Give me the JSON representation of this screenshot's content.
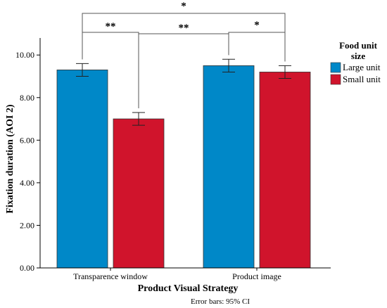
{
  "chart_data": {
    "type": "bar",
    "xlabel": "Product Visual Strategy",
    "ylabel": "Fixation duration (AOI 2)",
    "categories": [
      "Transparence window",
      "Product image"
    ],
    "series": [
      {
        "name": "Large unit",
        "color": "#0088c8",
        "values": [
          9.3,
          9.5
        ],
        "ci": [
          [
            9.0,
            9.6
          ],
          [
            9.2,
            9.8
          ]
        ]
      },
      {
        "name": "Small unit",
        "color": "#d0142c",
        "values": [
          7.0,
          9.2
        ],
        "ci": [
          [
            6.7,
            7.3
          ],
          [
            8.9,
            9.5
          ]
        ]
      }
    ],
    "ylim": [
      0,
      10.8
    ],
    "yticks": [
      0,
      2,
      4,
      6,
      8,
      10
    ],
    "ytick_labels": [
      "0.00",
      "2.00",
      "4.00",
      "6.00",
      "8.00",
      "10.00"
    ],
    "legend": {
      "title_line1": "Food unit",
      "title_line2": "size",
      "position": "right"
    },
    "footnote": "Error bars: 95% CI",
    "annotations": [
      {
        "label": "*",
        "from": [
          0,
          0
        ],
        "to": [
          1,
          1
        ]
      },
      {
        "label": "**",
        "from": [
          0,
          0
        ],
        "to": [
          0,
          1
        ]
      },
      {
        "label": "**",
        "from": [
          0,
          1
        ],
        "to": [
          1,
          0
        ]
      },
      {
        "label": "*",
        "from": [
          1,
          0
        ],
        "to": [
          1,
          1
        ]
      }
    ]
  }
}
